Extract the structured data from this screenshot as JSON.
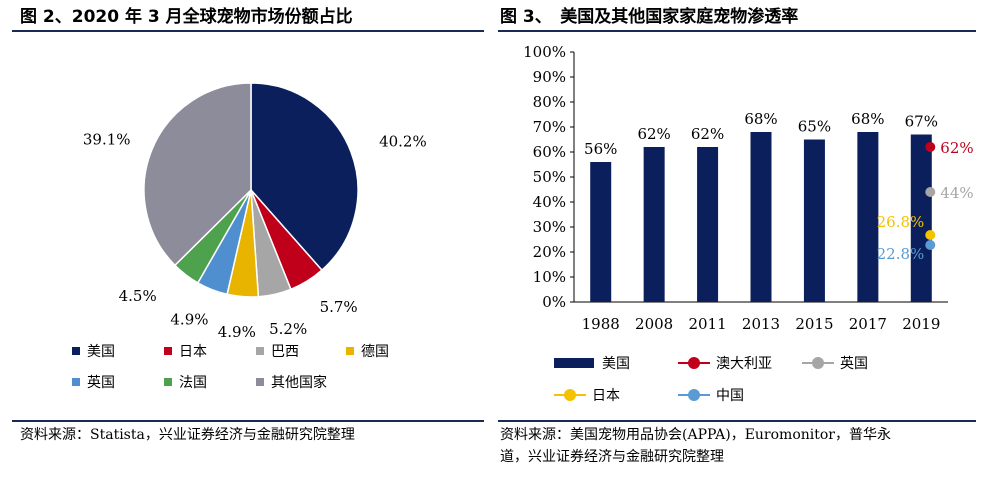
{
  "left": {
    "title": "图 2、2020 年 3 月全球宠物市场份额占比",
    "source": "资料来源：Statista，兴业证券经济与金融研究院整理"
  },
  "right": {
    "title": "图 3、　美国及其他国家家庭宠物渗透率",
    "source_line1": "资料来源：美国宠物用品协会(APPA)，Euromonitor，普华永",
    "source_line2": "道，兴业证券经济与金融研究院整理"
  },
  "chart_data": [
    {
      "type": "pie",
      "title": "",
      "slices": [
        {
          "label": "美国",
          "value": 40.2,
          "value_label": "40.2%",
          "color": "#0b1f5c"
        },
        {
          "label": "日本",
          "value": 5.7,
          "value_label": "5.7%",
          "color": "#c0001a"
        },
        {
          "label": "巴西",
          "value": 5.2,
          "value_label": "5.2%",
          "color": "#a6a6a6"
        },
        {
          "label": "德国",
          "value": 4.9,
          "value_label": "4.9%",
          "color": "#e8b400"
        },
        {
          "label": "英国",
          "value": 4.9,
          "value_label": "4.9%",
          "color": "#4f8fd0"
        },
        {
          "label": "法国",
          "value": 4.5,
          "value_label": "4.5%",
          "color": "#4ea24e"
        },
        {
          "label": "其他国家",
          "value": 39.1,
          "value_label": "39.1%",
          "color": "#8c8c9a"
        }
      ],
      "legend_position": "bottom"
    },
    {
      "type": "bar",
      "title": "",
      "xlabel": "",
      "ylabel": "",
      "categories": [
        "1988",
        "2008",
        "2011",
        "2013",
        "2015",
        "2017",
        "2019"
      ],
      "ylim": [
        0,
        100
      ],
      "yticks": [
        "0%",
        "10%",
        "20%",
        "30%",
        "40%",
        "50%",
        "60%",
        "70%",
        "80%",
        "90%",
        "100%"
      ],
      "series": [
        {
          "name": "美国",
          "values": [
            56,
            62,
            62,
            68,
            65,
            68,
            67
          ],
          "labels": [
            "56%",
            "62%",
            "62%",
            "68%",
            "65%",
            "68%",
            "67%"
          ],
          "color": "#0b1f5c"
        }
      ],
      "points": [
        {
          "name": "澳大利亚",
          "category": "2019",
          "value": 62,
          "label": "62%",
          "color": "#c0001a"
        },
        {
          "name": "英国",
          "category": "2019",
          "value": 44,
          "label": "44%",
          "color": "#a6a6a6"
        },
        {
          "name": "日本",
          "category": "2019",
          "value": 26.8,
          "label": "26.8%",
          "color": "#f5c200"
        },
        {
          "name": "中国",
          "category": "2019",
          "value": 22.8,
          "label": "22.8%",
          "color": "#5b9bd5"
        }
      ],
      "grid": false,
      "legend_position": "bottom"
    }
  ]
}
